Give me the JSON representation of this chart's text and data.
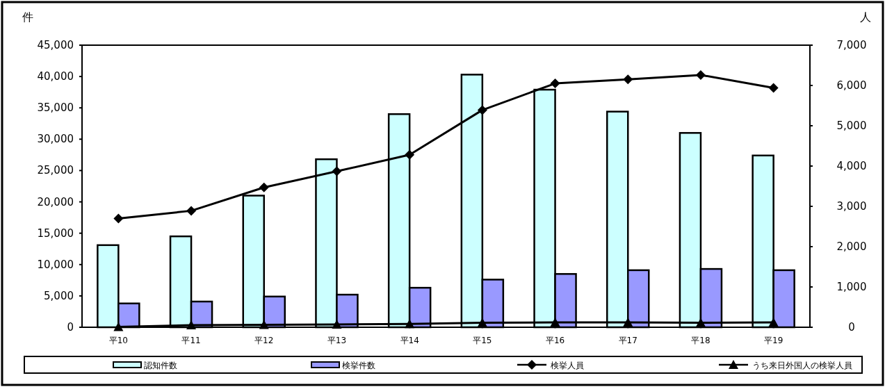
{
  "chart_data": {
    "type": "bar",
    "ylabel": "件",
    "y2label": "人",
    "categories": [
      "平10",
      "平11",
      "平12",
      "平13",
      "平14",
      "平15",
      "平16",
      "平17",
      "平18",
      "平19"
    ],
    "series": [
      {
        "name": "認知件数",
        "color": "#ccffff",
        "values": [
          13100,
          14500,
          21000,
          26800,
          34000,
          40300,
          37900,
          34400,
          31000,
          27400
        ]
      },
      {
        "name": "検挙件数",
        "color": "#9999ff",
        "values": [
          3800,
          4100,
          4900,
          5200,
          6300,
          7600,
          8500,
          9100,
          9300,
          9100
        ]
      },
      {
        "name": "検挙人員",
        "type": "line",
        "axis": "y2",
        "marker": "diamond",
        "color": "#000000",
        "values": [
          2700,
          2890,
          3470,
          3870,
          4280,
          5390,
          6050,
          6150,
          6260,
          5940
        ]
      },
      {
        "name": "うち来日外国人の検挙人員",
        "type": "line",
        "axis": "y2",
        "marker": "triangle",
        "color": "#000000",
        "values": [
          10,
          50,
          60,
          70,
          80,
          110,
          120,
          120,
          110,
          120
        ]
      }
    ],
    "ylim": [
      0,
      45000
    ],
    "yticks": [
      {
        "value": 0,
        "label": "0"
      },
      {
        "value": 5000,
        "label": "5,000"
      },
      {
        "value": 10000,
        "label": "10,000"
      },
      {
        "value": 15000,
        "label": "15,000"
      },
      {
        "value": 20000,
        "label": "20,000"
      },
      {
        "value": 25000,
        "label": "25,000"
      },
      {
        "value": 30000,
        "label": "30,000"
      },
      {
        "value": 35000,
        "label": "35,000"
      },
      {
        "value": 40000,
        "label": "40,000"
      },
      {
        "value": 45000,
        "label": "45,000"
      }
    ],
    "y2lim": [
      0,
      7000
    ],
    "y2ticks": [
      {
        "value": 0,
        "label": "0"
      },
      {
        "value": 1000,
        "label": "1,000"
      },
      {
        "value": 2000,
        "label": "2,000"
      },
      {
        "value": 3000,
        "label": "3,000"
      },
      {
        "value": 4000,
        "label": "4,000"
      },
      {
        "value": 5000,
        "label": "5,000"
      },
      {
        "value": 6000,
        "label": "6,000"
      },
      {
        "value": 7000,
        "label": "7,000"
      }
    ],
    "legend": "bottom",
    "grid": false
  }
}
